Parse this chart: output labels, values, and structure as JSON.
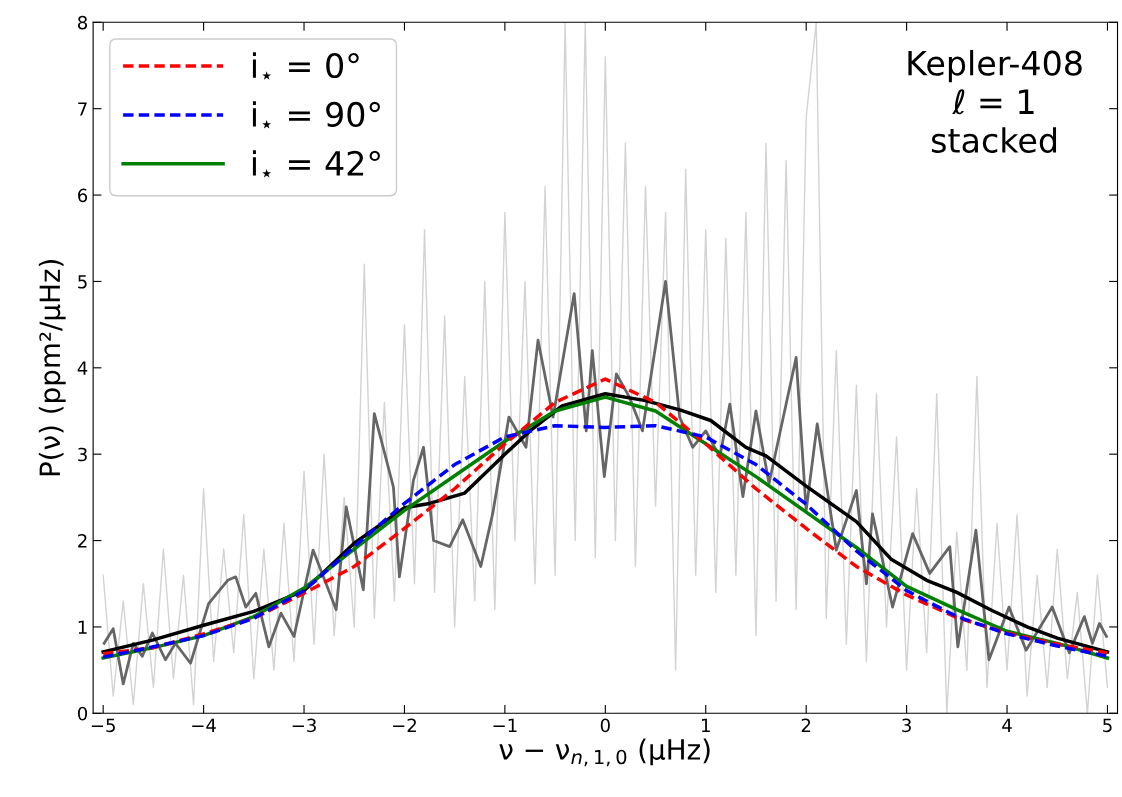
{
  "chart_data": {
    "type": "line",
    "xlabel": "ν − ν$_{n,1,0}$ (μHz)",
    "ylabel": "P(ν) (ppm²/μHz)",
    "annotations": [
      "Kepler-408\nℓ = 1\nstacked"
    ],
    "xlim": [
      -5.1,
      5.1
    ],
    "xticks": [
      {
        "value": -5,
        "label": "−5"
      },
      {
        "value": -4,
        "label": "−4"
      },
      {
        "value": -3,
        "label": "−3"
      },
      {
        "value": -2,
        "label": "−2"
      },
      {
        "value": -1,
        "label": "−1"
      },
      0,
      1,
      2,
      3,
      4,
      5
    ],
    "ylim": [
      0,
      8
    ],
    "yticks": [
      0,
      1,
      2,
      3,
      4,
      5,
      6,
      7,
      8
    ],
    "grid": false,
    "legend": "top left",
    "series": [
      {
        "color": "#d3d3d3",
        "line_style": "solid",
        "x": [
          -5.0,
          -4.9,
          -4.8,
          -4.7,
          -4.6,
          -4.5,
          -4.4,
          -4.3,
          -4.2,
          -4.1,
          -4.0,
          -3.9,
          -3.8,
          -3.7,
          -3.6,
          -3.5,
          -3.4,
          -3.3,
          -3.2,
          -3.1,
          -3.0,
          -2.9,
          -2.8,
          -2.7,
          -2.6,
          -2.5,
          -2.4,
          -2.3,
          -2.2,
          -2.1,
          -2.0,
          -1.9,
          -1.8,
          -1.7,
          -1.6,
          -1.5,
          -1.4,
          -1.3,
          -1.2,
          -1.1,
          -1.0,
          -0.9,
          -0.8,
          -0.7,
          -0.6,
          -0.5,
          -0.4,
          -0.3,
          -0.2,
          -0.1,
          0.0,
          0.1,
          0.2,
          0.3,
          0.4,
          0.5,
          0.6,
          0.7,
          0.8,
          0.9,
          1.0,
          1.1,
          1.2,
          1.3,
          1.4,
          1.5,
          1.6,
          1.7,
          1.8,
          1.9,
          2.0,
          2.1,
          2.2,
          2.3,
          2.4,
          2.5,
          2.6,
          2.7,
          2.8,
          2.9,
          3.0,
          3.1,
          3.2,
          3.3,
          3.4,
          3.5,
          3.6,
          3.7,
          3.8,
          3.9,
          4.0,
          4.1,
          4.2,
          4.3,
          4.4,
          4.5,
          4.6,
          4.7,
          4.8,
          4.9,
          5.0
        ],
        "values": [
          1.6,
          0.2,
          1.3,
          0.1,
          1.5,
          0.3,
          1.9,
          0.4,
          1.6,
          0.1,
          2.6,
          0.6,
          1.9,
          0.7,
          2.3,
          0.4,
          1.9,
          0.5,
          2.2,
          0.6,
          2.8,
          0.8,
          3.0,
          0.9,
          2.5,
          1.0,
          5.2,
          1.1,
          3.6,
          1.3,
          4.5,
          1.5,
          5.6,
          1.4,
          4.6,
          1.0,
          3.9,
          1.3,
          5.0,
          1.2,
          5.8,
          2.0,
          5.0,
          1.5,
          6.1,
          1.6,
          8.0,
          2.0,
          8.0,
          1.8,
          7.6,
          2.0,
          6.6,
          1.7,
          6.1,
          2.4,
          5.8,
          0.5,
          6.3,
          1.6,
          5.6,
          1.4,
          5.5,
          1.6,
          5.8,
          0.9,
          6.6,
          1.3,
          6.4,
          1.2,
          6.9,
          8.0,
          1.1,
          4.2,
          0.8,
          3.8,
          0.6,
          3.7,
          1.0,
          3.2,
          0.5,
          2.6,
          0.7,
          3.7,
          0.0,
          2.1,
          0.5,
          3.9,
          0.3,
          2.2,
          0.5,
          2.3,
          0.2,
          1.6,
          0.3,
          1.9,
          0.4,
          1.4,
          0.0,
          1.6,
          0.3
        ]
      },
      {
        "color": "#666666",
        "line_style": "solid",
        "x": [
          -4.99,
          -4.9,
          -4.8,
          -4.7,
          -4.61,
          -4.51,
          -4.38,
          -4.28,
          -4.13,
          -3.95,
          -3.76,
          -3.68,
          -3.58,
          -3.48,
          -3.35,
          -3.23,
          -3.1,
          -2.91,
          -2.68,
          -2.58,
          -2.41,
          -2.3,
          -2.11,
          -2.05,
          -1.91,
          -1.81,
          -1.71,
          -1.55,
          -1.42,
          -1.24,
          -1.12,
          -0.96,
          -0.79,
          -0.67,
          -0.52,
          -0.31,
          -0.19,
          -0.13,
          -0.01,
          0.11,
          0.24,
          0.37,
          0.6,
          0.74,
          0.87,
          1.0,
          1.14,
          1.24,
          1.37,
          1.5,
          1.63,
          1.9,
          2.0,
          2.11,
          2.3,
          2.5,
          2.6,
          2.66,
          2.86,
          3.06,
          3.23,
          3.43,
          3.51,
          3.69,
          3.82,
          4.02,
          4.19,
          4.45,
          4.62,
          4.77,
          4.85,
          4.92,
          4.99
        ],
        "values": [
          0.81,
          0.98,
          0.34,
          0.81,
          0.66,
          0.93,
          0.62,
          0.81,
          0.58,
          1.27,
          1.54,
          1.58,
          1.23,
          1.39,
          0.77,
          1.16,
          0.89,
          1.89,
          1.2,
          2.39,
          1.43,
          3.47,
          2.62,
          1.58,
          2.7,
          3.08,
          2.0,
          1.93,
          2.24,
          1.7,
          2.32,
          3.43,
          3.08,
          4.32,
          3.43,
          4.86,
          3.27,
          4.2,
          2.74,
          3.93,
          3.66,
          3.27,
          5.0,
          3.43,
          3.08,
          3.27,
          2.97,
          3.58,
          2.51,
          3.5,
          2.66,
          4.12,
          2.35,
          3.35,
          1.89,
          2.58,
          1.5,
          2.31,
          1.23,
          2.08,
          1.62,
          1.93,
          0.77,
          2.12,
          0.62,
          1.23,
          0.73,
          1.23,
          0.7,
          1.12,
          0.81,
          1.04,
          0.89
        ]
      },
      {
        "color": "#000000",
        "line_style": "solid",
        "x": [
          -5,
          -4.5,
          -4,
          -3.5,
          -3,
          -2.5,
          -2,
          -1.75,
          -1.4,
          -1,
          -0.75,
          -0.43,
          0,
          0.4,
          0.75,
          1.05,
          1.4,
          1.6,
          2,
          2.5,
          2.85,
          3.2,
          3.5,
          3.85,
          4.2,
          4.5,
          5
        ],
        "values": [
          0.71,
          0.85,
          1.02,
          1.18,
          1.42,
          1.97,
          2.38,
          2.43,
          2.55,
          3.0,
          3.27,
          3.56,
          3.7,
          3.62,
          3.51,
          3.39,
          3.08,
          2.98,
          2.63,
          2.22,
          1.78,
          1.54,
          1.4,
          1.19,
          1.0,
          0.87,
          0.71
        ]
      },
      {
        "name": "i$_{⋆}$ = 0°",
        "color": "#ff0000",
        "line_style": "dashed",
        "x": [
          -5,
          -4.5,
          -4,
          -3.5,
          -3,
          -2.5,
          -2,
          -1.5,
          -1,
          -0.5,
          0,
          0.5,
          1,
          1.5,
          2,
          2.5,
          3,
          3.5,
          4,
          4.5,
          5
        ],
        "values": [
          0.69,
          0.76,
          0.92,
          1.1,
          1.39,
          1.7,
          2.14,
          2.6,
          3.12,
          3.6,
          3.87,
          3.6,
          3.12,
          2.6,
          2.14,
          1.7,
          1.37,
          1.11,
          0.93,
          0.8,
          0.7
        ]
      },
      {
        "name": "i$_{⋆}$ = 90°",
        "color": "#0000ff",
        "line_style": "dashed",
        "x": [
          -5,
          -4.5,
          -4,
          -3.5,
          -3,
          -2.5,
          -2,
          -1.5,
          -1,
          -0.5,
          0,
          0.5,
          1,
          1.5,
          2,
          2.5,
          3,
          3.5,
          4,
          4.5,
          5
        ],
        "values": [
          0.65,
          0.77,
          0.9,
          1.1,
          1.42,
          1.93,
          2.43,
          2.88,
          3.2,
          3.33,
          3.31,
          3.33,
          3.2,
          2.88,
          2.42,
          1.88,
          1.42,
          1.12,
          0.92,
          0.78,
          0.66
        ]
      },
      {
        "name": "i$_{⋆}$ = 42°",
        "color": "#008000",
        "line_style": "solid",
        "x": [
          -5,
          -4.5,
          -4,
          -3.5,
          -3,
          -2.5,
          -2,
          -1.5,
          -1,
          -0.5,
          0,
          0.5,
          1,
          1.5,
          2,
          2.5,
          3,
          3.5,
          4,
          4.5,
          5
        ],
        "values": [
          0.64,
          0.76,
          0.9,
          1.12,
          1.45,
          1.9,
          2.35,
          2.75,
          3.15,
          3.5,
          3.66,
          3.5,
          3.12,
          2.74,
          2.33,
          1.92,
          1.47,
          1.2,
          0.95,
          0.81,
          0.64
        ]
      }
    ]
  }
}
